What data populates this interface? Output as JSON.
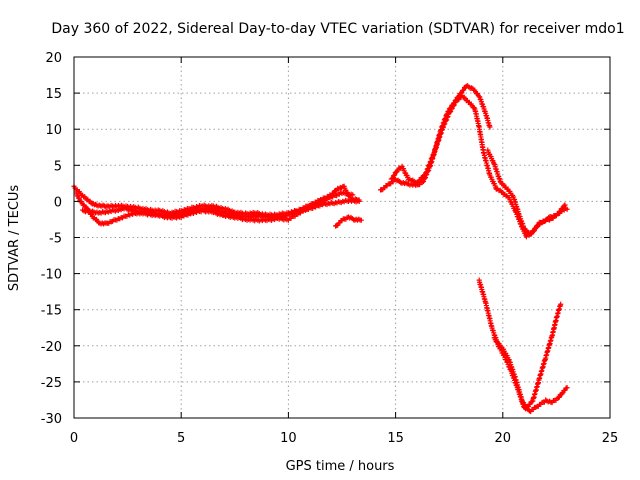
{
  "chart_data": {
    "type": "scatter",
    "title": "Day 360 of 2022, Sidereal Day-to-day VTEC variation (SDTVAR) for receiver mdo1",
    "xlabel": "GPS time / hours",
    "ylabel": "SDTVAR / TECUs",
    "xlim": [
      0,
      25
    ],
    "ylim": [
      -30,
      20
    ],
    "xticks": [
      "0",
      "5",
      "10",
      "15",
      "20",
      "25"
    ],
    "yticks": [
      "20",
      "15",
      "10",
      "5",
      "0",
      "-5",
      "-10",
      "-15",
      "-20",
      "-25",
      "-30"
    ],
    "grid": true,
    "marker": "plus",
    "color": "#ff0000",
    "series": [
      {
        "points": [
          [
            0.0,
            2.0
          ],
          [
            0.2,
            1.4
          ],
          [
            0.4,
            0.8
          ],
          [
            0.6,
            0.3
          ],
          [
            0.8,
            -0.2
          ],
          [
            1.0,
            -0.5
          ],
          [
            1.3,
            -0.6
          ],
          [
            1.6,
            -0.7
          ],
          [
            2.0,
            -0.6
          ],
          [
            2.5,
            -0.7
          ],
          [
            3.0,
            -0.9
          ],
          [
            3.5,
            -1.2
          ],
          [
            4.0,
            -1.3
          ],
          [
            4.5,
            -1.6
          ],
          [
            5.0,
            -1.3
          ],
          [
            5.5,
            -0.9
          ],
          [
            6.0,
            -0.6
          ],
          [
            6.5,
            -0.7
          ],
          [
            7.0,
            -1.0
          ],
          [
            7.5,
            -1.5
          ],
          [
            8.0,
            -1.7
          ],
          [
            8.5,
            -1.6
          ],
          [
            9.0,
            -1.9
          ],
          [
            9.5,
            -1.8
          ],
          [
            10.0,
            -1.6
          ],
          [
            10.5,
            -1.2
          ],
          [
            11.0,
            -0.5
          ],
          [
            11.5,
            0.2
          ],
          [
            12.0,
            0.9
          ],
          [
            12.3,
            1.8
          ],
          [
            12.6,
            2.0
          ],
          [
            12.8,
            0.8
          ],
          [
            13.0,
            0.2
          ],
          [
            13.3,
            0.3
          ]
        ]
      },
      {
        "points": [
          [
            0.1,
            1.2
          ],
          [
            0.3,
            0.0
          ],
          [
            0.6,
            -1.0
          ],
          [
            0.9,
            -2.2
          ],
          [
            1.2,
            -3.0
          ],
          [
            1.5,
            -3.1
          ],
          [
            1.8,
            -2.7
          ],
          [
            2.2,
            -2.3
          ],
          [
            2.6,
            -1.8
          ],
          [
            3.0,
            -1.6
          ],
          [
            3.5,
            -1.8
          ],
          [
            4.0,
            -2.0
          ],
          [
            4.5,
            -2.3
          ],
          [
            5.0,
            -2.1
          ],
          [
            5.5,
            -1.6
          ],
          [
            6.0,
            -1.3
          ],
          [
            6.5,
            -1.5
          ],
          [
            7.0,
            -2.0
          ],
          [
            7.5,
            -2.2
          ],
          [
            8.0,
            -2.5
          ],
          [
            8.5,
            -2.6
          ],
          [
            9.0,
            -2.6
          ],
          [
            9.5,
            -2.4
          ],
          [
            10.0,
            -2.5
          ],
          [
            10.5,
            -1.6
          ],
          [
            11.0,
            -0.8
          ],
          [
            11.5,
            0.0
          ],
          [
            12.0,
            0.6
          ],
          [
            12.5,
            1.2
          ],
          [
            13.0,
            0.9
          ]
        ]
      },
      {
        "points": [
          [
            0.4,
            -1.3
          ],
          [
            0.8,
            -1.4
          ],
          [
            1.2,
            -1.6
          ],
          [
            1.6,
            -1.4
          ],
          [
            2.0,
            -1.2
          ],
          [
            2.4,
            -1.0
          ],
          [
            2.8,
            -1.3
          ],
          [
            3.2,
            -1.5
          ],
          [
            3.8,
            -1.7
          ],
          [
            4.4,
            -1.9
          ],
          [
            5.0,
            -1.7
          ],
          [
            5.6,
            -1.2
          ],
          [
            6.2,
            -1.0
          ],
          [
            6.8,
            -1.3
          ],
          [
            7.4,
            -1.9
          ],
          [
            8.0,
            -2.1
          ],
          [
            8.6,
            -2.0
          ],
          [
            9.2,
            -2.2
          ],
          [
            9.8,
            -2.1
          ],
          [
            10.4,
            -1.4
          ],
          [
            11.0,
            -1.0
          ],
          [
            11.6,
            -0.4
          ],
          [
            12.2,
            -0.2
          ],
          [
            12.8,
            0.1
          ],
          [
            13.3,
            0.0
          ]
        ]
      },
      {
        "points": [
          [
            12.2,
            -3.5
          ],
          [
            12.5,
            -2.6
          ],
          [
            12.8,
            -2.2
          ],
          [
            13.1,
            -2.5
          ],
          [
            13.4,
            -2.6
          ]
        ]
      },
      {
        "points": [
          [
            14.3,
            1.5
          ],
          [
            14.6,
            2.2
          ],
          [
            15.0,
            3.0
          ],
          [
            15.3,
            2.6
          ],
          [
            15.6,
            2.4
          ],
          [
            16.0,
            2.2
          ],
          [
            16.3,
            2.8
          ],
          [
            16.6,
            4.8
          ],
          [
            16.9,
            7.6
          ],
          [
            17.2,
            10.2
          ],
          [
            17.5,
            12.2
          ],
          [
            17.8,
            13.8
          ],
          [
            18.1,
            14.6
          ],
          [
            18.4,
            13.8
          ],
          [
            18.7,
            12.8
          ],
          [
            18.9,
            10.2
          ],
          [
            19.1,
            6.8
          ],
          [
            19.4,
            3.6
          ],
          [
            19.7,
            1.8
          ],
          [
            20.0,
            1.2
          ],
          [
            20.3,
            0.4
          ],
          [
            20.6,
            -1.4
          ],
          [
            20.9,
            -3.6
          ],
          [
            21.1,
            -4.8
          ],
          [
            21.4,
            -4.2
          ],
          [
            21.7,
            -3.0
          ],
          [
            22.0,
            -2.6
          ],
          [
            22.3,
            -2.4
          ],
          [
            22.6,
            -1.6
          ],
          [
            22.9,
            -0.5
          ]
        ]
      },
      {
        "points": [
          [
            14.8,
            3.0
          ],
          [
            15.1,
            4.4
          ],
          [
            15.3,
            4.8
          ],
          [
            15.6,
            3.1
          ],
          [
            16.0,
            2.6
          ],
          [
            16.4,
            3.8
          ],
          [
            16.8,
            6.8
          ],
          [
            17.1,
            9.8
          ],
          [
            17.4,
            12.2
          ],
          [
            17.7,
            13.6
          ],
          [
            18.0,
            14.8
          ],
          [
            18.3,
            16.0
          ],
          [
            18.6,
            15.6
          ],
          [
            18.9,
            14.6
          ],
          [
            19.2,
            12.2
          ],
          [
            19.4,
            10.2
          ]
        ]
      },
      {
        "points": [
          [
            19.3,
            7.0
          ],
          [
            19.6,
            5.2
          ],
          [
            19.9,
            2.6
          ],
          [
            20.2,
            1.8
          ],
          [
            20.5,
            0.6
          ],
          [
            20.8,
            -2.2
          ],
          [
            21.0,
            -3.8
          ],
          [
            21.3,
            -4.6
          ],
          [
            21.6,
            -3.4
          ],
          [
            21.9,
            -2.8
          ],
          [
            22.2,
            -2.2
          ],
          [
            22.5,
            -1.9
          ],
          [
            22.8,
            -1.2
          ],
          [
            23.0,
            -1.0
          ]
        ]
      },
      {
        "points": [
          [
            18.9,
            -11.0
          ],
          [
            19.2,
            -14.0
          ],
          [
            19.5,
            -17.6
          ],
          [
            19.8,
            -20.0
          ],
          [
            20.1,
            -21.6
          ],
          [
            20.4,
            -23.6
          ],
          [
            20.7,
            -26.0
          ],
          [
            21.0,
            -28.6
          ],
          [
            21.3,
            -29.0
          ],
          [
            21.6,
            -28.4
          ],
          [
            22.0,
            -27.6
          ],
          [
            22.3,
            -27.8
          ],
          [
            22.6,
            -27.2
          ],
          [
            22.8,
            -26.4
          ],
          [
            23.0,
            -25.8
          ]
        ]
      },
      {
        "points": [
          [
            19.6,
            -19.0
          ],
          [
            20.0,
            -20.4
          ],
          [
            20.3,
            -22.0
          ],
          [
            20.6,
            -24.6
          ],
          [
            20.9,
            -27.6
          ],
          [
            21.1,
            -28.6
          ],
          [
            21.4,
            -27.6
          ],
          [
            21.7,
            -24.6
          ],
          [
            22.0,
            -21.6
          ],
          [
            22.3,
            -18.6
          ],
          [
            22.5,
            -16.2
          ],
          [
            22.7,
            -14.2
          ]
        ]
      }
    ]
  }
}
